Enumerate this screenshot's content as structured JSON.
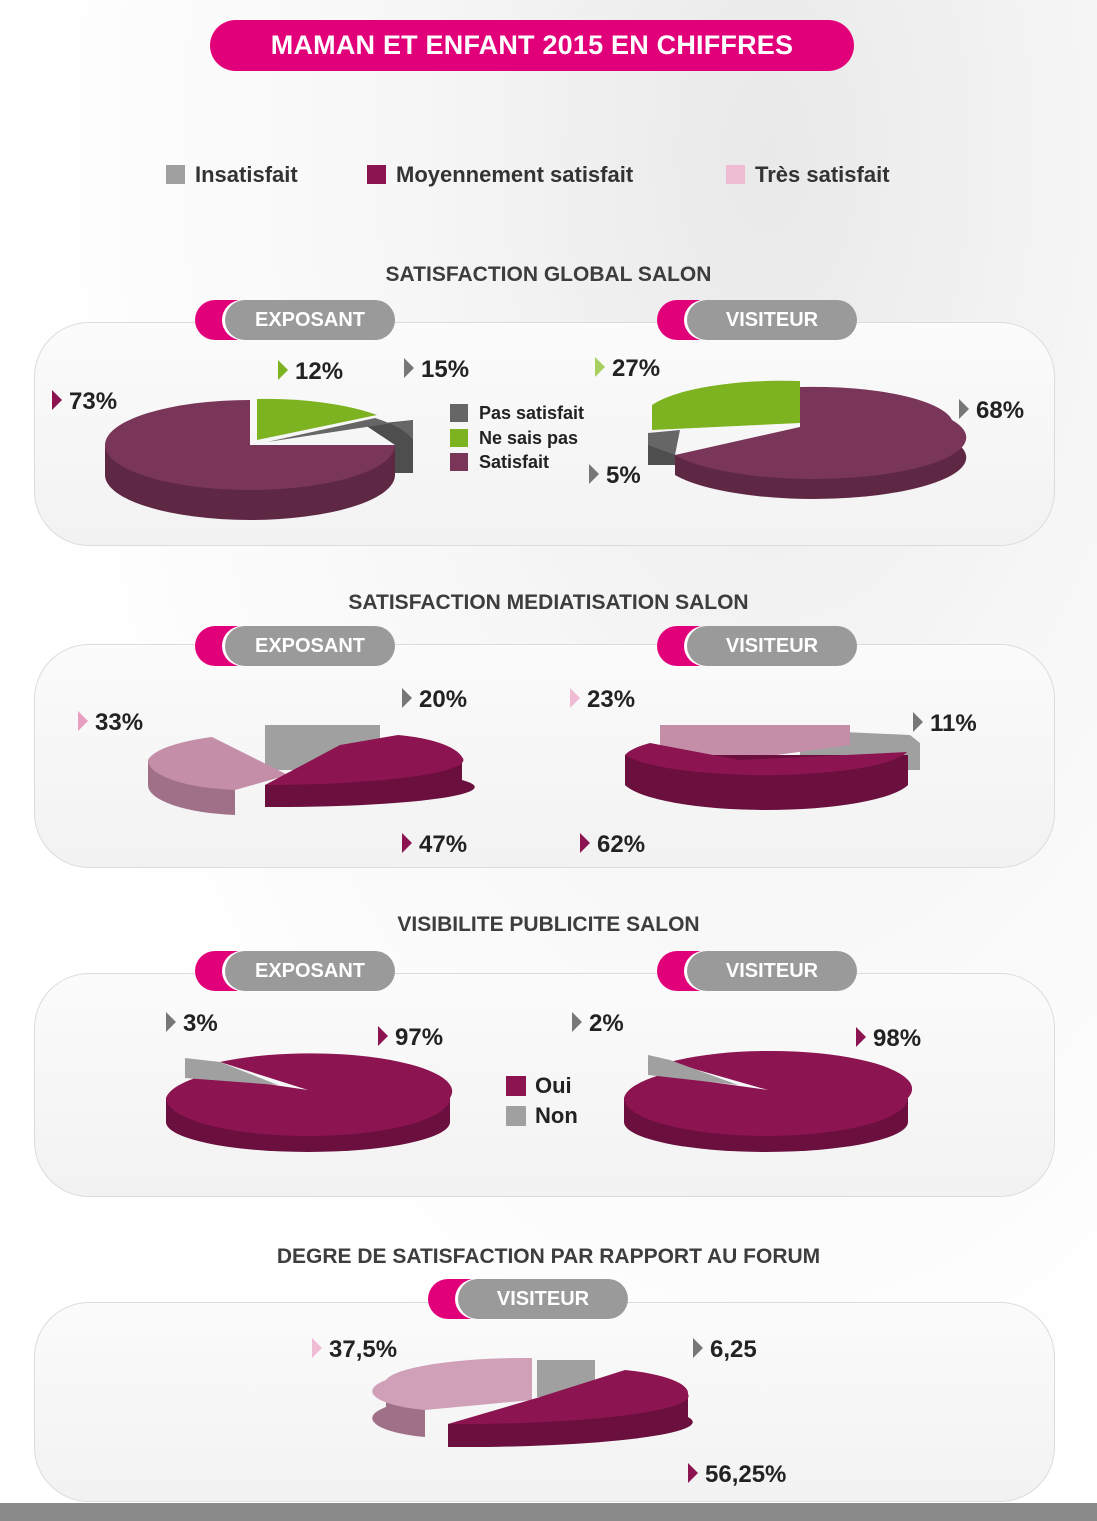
{
  "title": "MAMAN ET ENFANT 2015 EN CHIFFRES",
  "colors": {
    "accent": "#e2007a",
    "insatisfait": "#a0a0a0",
    "moyennement": "#8c1450",
    "tres": "#f0bcd4",
    "pas_satisfait": "#666666",
    "ne_sais_pas": "#7db320",
    "satisfait": "#7a3658",
    "oui": "#8c1450",
    "non": "#a0a0a0"
  },
  "top_legend": [
    "Insatisfait",
    "Moyennement satisfait",
    "Très satisfait"
  ],
  "tags": {
    "exposant": "EXPOSANT",
    "visiteur": "VISITEUR"
  },
  "legend_global": [
    "Pas satisfait",
    "Ne sais pas",
    "Satisfait"
  ],
  "legend_visibilite": [
    "Oui",
    "Non"
  ],
  "sections": {
    "global": {
      "title": "SATISFACTION GLOBAL SALON"
    },
    "media": {
      "title": "SATISFACTION MEDIATISATION  SALON"
    },
    "visib": {
      "title": "VISIBILITE  PUBLICITE SALON"
    },
    "forum": {
      "title": "DEGRE DE SATISFACTION PAR RAPPORT AU FORUM"
    }
  },
  "chart_data": [
    {
      "type": "pie",
      "section": "SATISFACTION GLOBAL SALON",
      "group": "EXPOSANT",
      "categories": [
        "Satisfait",
        "Ne sais pas",
        "Pas satisfait"
      ],
      "values": [
        73,
        12,
        15
      ],
      "labels": [
        "73%",
        "12%",
        "15%"
      ]
    },
    {
      "type": "pie",
      "section": "SATISFACTION GLOBAL SALON",
      "group": "VISITEUR",
      "categories": [
        "Satisfait",
        "Ne sais pas",
        "Pas satisfait"
      ],
      "values": [
        68,
        27,
        5
      ],
      "labels": [
        "68%",
        "27%",
        "5%"
      ]
    },
    {
      "type": "pie",
      "section": "SATISFACTION MEDIATISATION  SALON",
      "group": "EXPOSANT",
      "categories": [
        "Insatisfait",
        "Moyennement satisfait",
        "Très satisfait"
      ],
      "values": [
        20,
        47,
        33
      ],
      "labels": [
        "20%",
        "47%",
        "33%"
      ]
    },
    {
      "type": "pie",
      "section": "SATISFACTION MEDIATISATION  SALON",
      "group": "VISITEUR",
      "categories": [
        "Insatisfait",
        "Moyennement satisfait",
        "Très satisfait"
      ],
      "values": [
        11,
        62,
        23
      ],
      "labels": [
        "11%",
        "62%",
        "23%"
      ]
    },
    {
      "type": "pie",
      "section": "VISIBILITE  PUBLICITE SALON",
      "group": "EXPOSANT",
      "categories": [
        "Oui",
        "Non"
      ],
      "values": [
        97,
        3
      ],
      "labels": [
        "97%",
        "3%"
      ]
    },
    {
      "type": "pie",
      "section": "VISIBILITE  PUBLICITE SALON",
      "group": "VISITEUR",
      "categories": [
        "Oui",
        "Non"
      ],
      "values": [
        98,
        2
      ],
      "labels": [
        "98%",
        "2%"
      ]
    },
    {
      "type": "pie",
      "section": "DEGRE DE SATISFACTION PAR RAPPORT AU FORUM",
      "group": "VISITEUR",
      "categories": [
        "Insatisfait",
        "Moyennement satisfait",
        "Très satisfait"
      ],
      "values": [
        6.25,
        56.25,
        37.5
      ],
      "labels": [
        "6,25",
        "56,25%",
        "37,5%"
      ]
    }
  ]
}
